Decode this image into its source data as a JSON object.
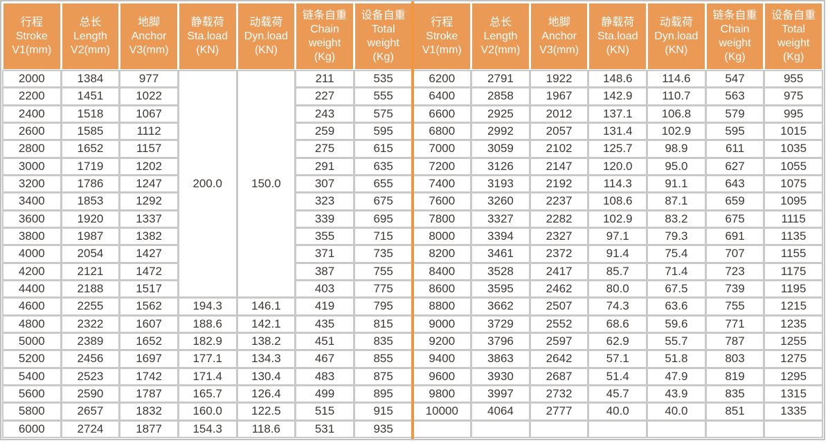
{
  "colors": {
    "header_bg": "#EB9A56",
    "header_text": "#FFFFFF",
    "divider": "#EE9740",
    "grid_line": "#C9C9C9",
    "outer_border": "#C1C1C1",
    "text": "#3B3734"
  },
  "table": {
    "columns": [
      {
        "zh": "行程",
        "en": [
          "Stroke",
          "V1(mm)"
        ]
      },
      {
        "zh": "总长",
        "en": [
          "Length",
          "V2(mm)"
        ]
      },
      {
        "zh": "地脚",
        "en": [
          "Anchor",
          "V3(mm)"
        ]
      },
      {
        "zh": "静载荷",
        "en": [
          "Sta.load",
          "(KN)"
        ]
      },
      {
        "zh": "动载荷",
        "en": [
          "Dyn.load",
          "(KN)"
        ]
      },
      {
        "zh": "链条自重",
        "en": [
          "Chain",
          "weight",
          "(Kg)"
        ]
      },
      {
        "zh": "设备自重",
        "en": [
          "Total",
          "weight",
          "(Kg)"
        ]
      }
    ],
    "left": {
      "merged_rowspan": 13,
      "rows": [
        [
          "2000",
          "1384",
          "977",
          "200.0",
          "150.0",
          "211",
          "535"
        ],
        [
          "2200",
          "1451",
          "1022",
          null,
          null,
          "227",
          "555"
        ],
        [
          "2400",
          "1518",
          "1067",
          null,
          null,
          "243",
          "575"
        ],
        [
          "2600",
          "1585",
          "1112",
          null,
          null,
          "259",
          "595"
        ],
        [
          "2800",
          "1652",
          "1157",
          null,
          null,
          "275",
          "615"
        ],
        [
          "3000",
          "1719",
          "1202",
          null,
          null,
          "291",
          "635"
        ],
        [
          "3200",
          "1786",
          "1247",
          null,
          null,
          "307",
          "655"
        ],
        [
          "3400",
          "1853",
          "1292",
          null,
          null,
          "323",
          "675"
        ],
        [
          "3600",
          "1920",
          "1337",
          null,
          null,
          "339",
          "695"
        ],
        [
          "3800",
          "1987",
          "1382",
          null,
          null,
          "355",
          "715"
        ],
        [
          "4000",
          "2054",
          "1427",
          null,
          null,
          "371",
          "735"
        ],
        [
          "4200",
          "2121",
          "1472",
          null,
          null,
          "387",
          "755"
        ],
        [
          "4400",
          "2188",
          "1517",
          null,
          null,
          "403",
          "775"
        ],
        [
          "4600",
          "2255",
          "1562",
          "194.3",
          "146.1",
          "419",
          "795"
        ],
        [
          "4800",
          "2322",
          "1607",
          "188.6",
          "142.1",
          "435",
          "815"
        ],
        [
          "5000",
          "2389",
          "1652",
          "182.9",
          "138.2",
          "451",
          "835"
        ],
        [
          "5200",
          "2456",
          "1697",
          "177.1",
          "134.3",
          "467",
          "855"
        ],
        [
          "5400",
          "2523",
          "1742",
          "171.4",
          "130.4",
          "483",
          "875"
        ],
        [
          "5600",
          "2590",
          "1787",
          "165.7",
          "126.4",
          "499",
          "895"
        ],
        [
          "5800",
          "2657",
          "1832",
          "160.0",
          "122.5",
          "515",
          "915"
        ],
        [
          "6000",
          "2724",
          "1877",
          "154.3",
          "118.6",
          "531",
          "935"
        ]
      ]
    },
    "right": {
      "rows": [
        [
          "6200",
          "2791",
          "1922",
          "148.6",
          "114.6",
          "547",
          "955"
        ],
        [
          "6400",
          "2858",
          "1967",
          "142.9",
          "110.7",
          "563",
          "975"
        ],
        [
          "6600",
          "2925",
          "2012",
          "137.1",
          "106.8",
          "579",
          "995"
        ],
        [
          "6800",
          "2992",
          "2057",
          "131.4",
          "102.9",
          "595",
          "1015"
        ],
        [
          "7000",
          "3059",
          "2102",
          "125.7",
          "98.9",
          "611",
          "1035"
        ],
        [
          "7200",
          "3126",
          "2147",
          "120.0",
          "95.0",
          "627",
          "1055"
        ],
        [
          "7400",
          "3193",
          "2192",
          "114.3",
          "91.1",
          "643",
          "1075"
        ],
        [
          "7600",
          "3260",
          "2237",
          "108.6",
          "87.1",
          "659",
          "1095"
        ],
        [
          "7800",
          "3327",
          "2282",
          "102.9",
          "83.2",
          "675",
          "1115"
        ],
        [
          "8000",
          "3394",
          "2327",
          "97.1",
          "79.3",
          "691",
          "1135"
        ],
        [
          "8200",
          "3461",
          "2372",
          "91.4",
          "75.4",
          "707",
          "1155"
        ],
        [
          "8400",
          "3528",
          "2417",
          "85.7",
          "71.4",
          "723",
          "1175"
        ],
        [
          "8600",
          "3595",
          "2462",
          "80.0",
          "67.5",
          "739",
          "1195"
        ],
        [
          "8800",
          "3662",
          "2507",
          "74.3",
          "63.6",
          "755",
          "1215"
        ],
        [
          "9000",
          "3729",
          "2552",
          "68.6",
          "59.6",
          "771",
          "1235"
        ],
        [
          "9200",
          "3796",
          "2597",
          "62.9",
          "55.7",
          "787",
          "1255"
        ],
        [
          "9400",
          "3863",
          "2642",
          "57.1",
          "51.8",
          "803",
          "1275"
        ],
        [
          "9600",
          "3930",
          "2687",
          "51.4",
          "47.9",
          "819",
          "1295"
        ],
        [
          "9800",
          "3997",
          "2732",
          "45.7",
          "43.9",
          "835",
          "1315"
        ],
        [
          "10000",
          "4064",
          "2777",
          "40.0",
          "40.0",
          "851",
          "1335"
        ],
        [
          "",
          "",
          "",
          "",
          "",
          "",
          ""
        ]
      ]
    }
  }
}
